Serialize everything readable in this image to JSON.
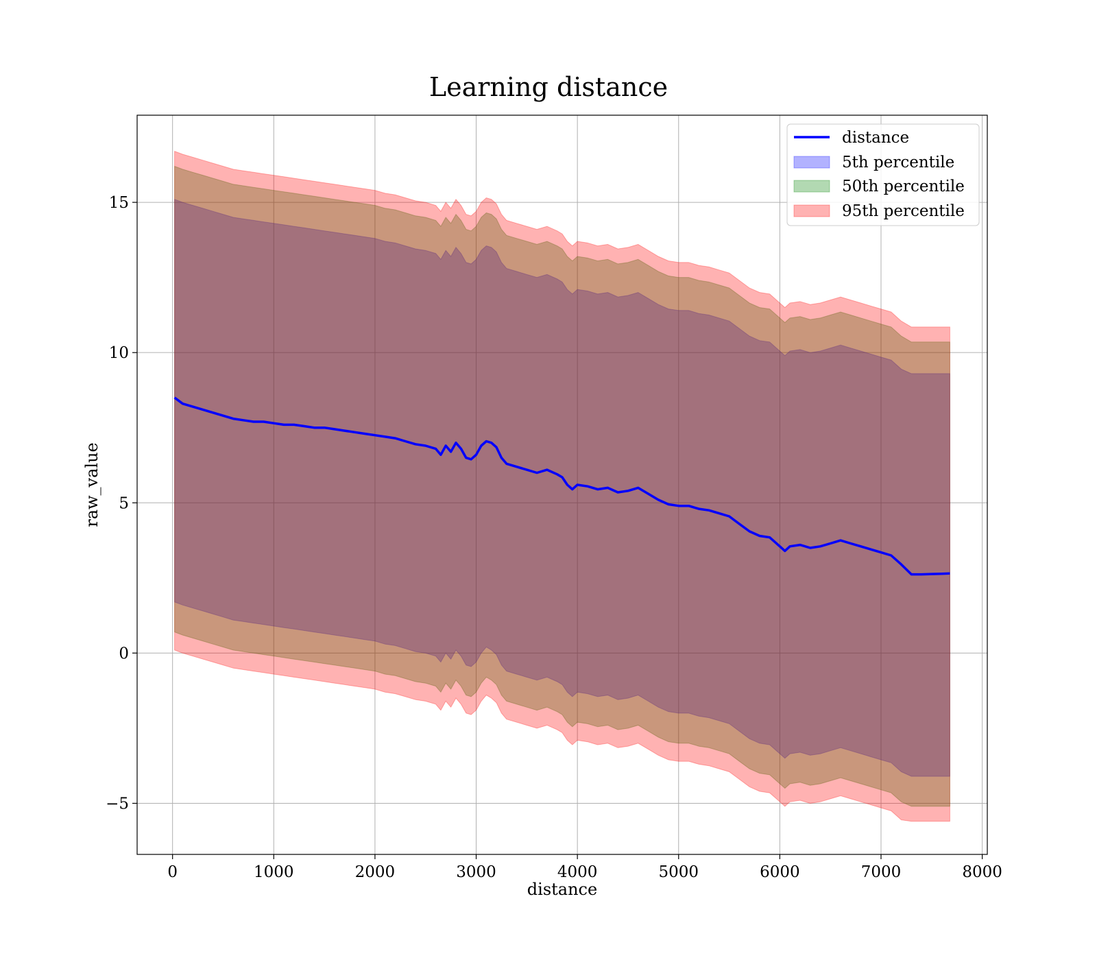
{
  "chart_data": {
    "type": "area",
    "title": "Learning distance",
    "xlabel": "distance",
    "ylabel": "raw_value",
    "xlim": [
      -350,
      8050
    ],
    "ylim": [
      -6.7,
      17.9
    ],
    "xticks": [
      0,
      1000,
      2000,
      3000,
      4000,
      5000,
      6000,
      7000,
      8000
    ],
    "yticks": [
      -5,
      0,
      5,
      10,
      15
    ],
    "xtick_labels": [
      "0",
      "1000",
      "2000",
      "3000",
      "4000",
      "5000",
      "6000",
      "7000",
      "8000"
    ],
    "ytick_labels": [
      "−5",
      "0",
      "5",
      "10",
      "15"
    ],
    "grid": true,
    "legend_position": "top-right",
    "colors": {
      "line": "#0000ff",
      "p5": "#0000ff",
      "p50": "#008000",
      "p95": "#ff0000"
    },
    "x": [
      20,
      100,
      200,
      300,
      400,
      500,
      600,
      700,
      800,
      900,
      1000,
      1100,
      1200,
      1300,
      1400,
      1500,
      1600,
      1700,
      1800,
      1900,
      2000,
      2100,
      2200,
      2300,
      2400,
      2500,
      2600,
      2650,
      2700,
      2750,
      2800,
      2850,
      2900,
      2950,
      3000,
      3050,
      3100,
      3150,
      3200,
      3250,
      3300,
      3400,
      3500,
      3600,
      3700,
      3800,
      3850,
      3900,
      3950,
      4000,
      4100,
      4200,
      4300,
      4400,
      4500,
      4600,
      4700,
      4800,
      4900,
      5000,
      5100,
      5200,
      5300,
      5400,
      5500,
      5600,
      5700,
      5800,
      5900,
      6000,
      6050,
      6100,
      6200,
      6300,
      6400,
      6500,
      6600,
      6700,
      6800,
      6900,
      7000,
      7100,
      7200,
      7300,
      7400,
      7500,
      7600,
      7680
    ],
    "series": [
      {
        "name": "distance",
        "values": [
          8.5,
          8.3,
          8.2,
          8.1,
          8.0,
          7.9,
          7.8,
          7.75,
          7.7,
          7.7,
          7.65,
          7.6,
          7.6,
          7.55,
          7.5,
          7.5,
          7.45,
          7.4,
          7.35,
          7.3,
          7.25,
          7.2,
          7.15,
          7.05,
          6.95,
          6.9,
          6.8,
          6.6,
          6.9,
          6.7,
          7.0,
          6.8,
          6.5,
          6.45,
          6.6,
          6.9,
          7.05,
          7.0,
          6.85,
          6.5,
          6.3,
          6.2,
          6.1,
          6.0,
          6.1,
          5.95,
          5.85,
          5.6,
          5.45,
          5.6,
          5.55,
          5.45,
          5.5,
          5.35,
          5.4,
          5.5,
          5.3,
          5.1,
          4.95,
          4.9,
          4.9,
          4.8,
          4.75,
          4.65,
          4.55,
          4.3,
          4.05,
          3.9,
          3.85,
          3.55,
          3.4,
          3.55,
          3.6,
          3.5,
          3.55,
          3.65,
          3.75,
          3.65,
          3.55,
          3.45,
          3.35,
          3.25,
          2.95,
          2.62,
          2.62,
          2.63,
          2.64,
          2.65
        ]
      },
      {
        "name": "5th percentile",
        "lower": [
          1.7,
          1.6,
          1.5,
          1.4,
          1.3,
          1.2,
          1.1,
          1.05,
          1.0,
          0.95,
          0.9,
          0.85,
          0.8,
          0.75,
          0.7,
          0.65,
          0.6,
          0.55,
          0.5,
          0.45,
          0.4,
          0.3,
          0.25,
          0.15,
          0.05,
          0.0,
          -0.1,
          -0.3,
          0.0,
          -0.2,
          0.1,
          -0.1,
          -0.4,
          -0.45,
          -0.3,
          0.0,
          0.2,
          0.1,
          -0.05,
          -0.4,
          -0.6,
          -0.7,
          -0.8,
          -0.9,
          -0.8,
          -0.95,
          -1.05,
          -1.3,
          -1.45,
          -1.3,
          -1.35,
          -1.45,
          -1.4,
          -1.55,
          -1.5,
          -1.4,
          -1.6,
          -1.8,
          -1.95,
          -2.0,
          -2.0,
          -2.1,
          -2.15,
          -2.25,
          -2.35,
          -2.6,
          -2.85,
          -3.0,
          -3.05,
          -3.35,
          -3.5,
          -3.35,
          -3.3,
          -3.4,
          -3.35,
          -3.25,
          -3.15,
          -3.25,
          -3.35,
          -3.45,
          -3.55,
          -3.65,
          -3.95,
          -4.1,
          -4.1,
          -4.1,
          -4.1,
          -4.1
        ],
        "upper": [
          15.1,
          15.0,
          14.9,
          14.8,
          14.7,
          14.6,
          14.5,
          14.45,
          14.4,
          14.35,
          14.3,
          14.25,
          14.2,
          14.15,
          14.1,
          14.05,
          14.0,
          13.95,
          13.9,
          13.85,
          13.8,
          13.7,
          13.65,
          13.55,
          13.45,
          13.4,
          13.3,
          13.1,
          13.4,
          13.2,
          13.5,
          13.3,
          13.0,
          12.95,
          13.1,
          13.4,
          13.55,
          13.5,
          13.35,
          13.0,
          12.8,
          12.7,
          12.6,
          12.5,
          12.6,
          12.45,
          12.35,
          12.1,
          11.95,
          12.1,
          12.05,
          11.95,
          12.0,
          11.85,
          11.9,
          12.0,
          11.8,
          11.6,
          11.45,
          11.4,
          11.4,
          11.3,
          11.25,
          11.15,
          11.05,
          10.8,
          10.55,
          10.4,
          10.35,
          10.05,
          9.9,
          10.05,
          10.1,
          10.0,
          10.05,
          10.15,
          10.25,
          10.15,
          10.05,
          9.95,
          9.85,
          9.75,
          9.45,
          9.3,
          9.3,
          9.3,
          9.3,
          9.3
        ]
      },
      {
        "name": "50th percentile",
        "lower": [
          0.7,
          0.6,
          0.5,
          0.4,
          0.3,
          0.2,
          0.1,
          0.05,
          0.0,
          -0.05,
          -0.1,
          -0.15,
          -0.2,
          -0.25,
          -0.3,
          -0.35,
          -0.4,
          -0.45,
          -0.5,
          -0.55,
          -0.6,
          -0.7,
          -0.75,
          -0.85,
          -0.95,
          -1.0,
          -1.1,
          -1.3,
          -1.0,
          -1.2,
          -0.9,
          -1.1,
          -1.4,
          -1.45,
          -1.3,
          -1.0,
          -0.8,
          -0.9,
          -1.05,
          -1.4,
          -1.6,
          -1.7,
          -1.8,
          -1.9,
          -1.8,
          -1.95,
          -2.05,
          -2.3,
          -2.45,
          -2.3,
          -2.35,
          -2.45,
          -2.4,
          -2.55,
          -2.5,
          -2.4,
          -2.6,
          -2.8,
          -2.95,
          -3.0,
          -3.0,
          -3.1,
          -3.15,
          -3.25,
          -3.35,
          -3.6,
          -3.85,
          -4.0,
          -4.05,
          -4.35,
          -4.5,
          -4.35,
          -4.3,
          -4.4,
          -4.35,
          -4.25,
          -4.15,
          -4.25,
          -4.35,
          -4.45,
          -4.55,
          -4.65,
          -4.95,
          -5.1,
          -5.1,
          -5.1,
          -5.1,
          -5.1
        ],
        "upper": [
          16.2,
          16.1,
          16.0,
          15.9,
          15.8,
          15.7,
          15.6,
          15.55,
          15.5,
          15.45,
          15.4,
          15.35,
          15.3,
          15.25,
          15.2,
          15.15,
          15.1,
          15.05,
          15.0,
          14.95,
          14.9,
          14.8,
          14.75,
          14.65,
          14.55,
          14.5,
          14.4,
          14.2,
          14.5,
          14.3,
          14.6,
          14.4,
          14.1,
          14.05,
          14.2,
          14.5,
          14.65,
          14.6,
          14.45,
          14.1,
          13.9,
          13.8,
          13.7,
          13.6,
          13.7,
          13.55,
          13.45,
          13.2,
          13.05,
          13.2,
          13.15,
          13.05,
          13.1,
          12.95,
          13.0,
          13.1,
          12.9,
          12.7,
          12.55,
          12.5,
          12.5,
          12.4,
          12.35,
          12.25,
          12.15,
          11.9,
          11.65,
          11.5,
          11.45,
          11.15,
          11.0,
          11.15,
          11.2,
          11.1,
          11.15,
          11.25,
          11.35,
          11.25,
          11.15,
          11.05,
          10.95,
          10.85,
          10.55,
          10.35,
          10.35,
          10.35,
          10.35,
          10.35
        ]
      },
      {
        "name": "95th percentile",
        "lower": [
          0.1,
          0.0,
          -0.1,
          -0.2,
          -0.3,
          -0.4,
          -0.5,
          -0.55,
          -0.6,
          -0.65,
          -0.7,
          -0.75,
          -0.8,
          -0.85,
          -0.9,
          -0.95,
          -1.0,
          -1.05,
          -1.1,
          -1.15,
          -1.2,
          -1.3,
          -1.35,
          -1.45,
          -1.55,
          -1.6,
          -1.7,
          -1.9,
          -1.6,
          -1.8,
          -1.5,
          -1.7,
          -2.0,
          -2.05,
          -1.9,
          -1.6,
          -1.4,
          -1.5,
          -1.65,
          -2.0,
          -2.2,
          -2.3,
          -2.4,
          -2.5,
          -2.4,
          -2.55,
          -2.65,
          -2.9,
          -3.05,
          -2.9,
          -2.95,
          -3.05,
          -3.0,
          -3.15,
          -3.1,
          -3.0,
          -3.2,
          -3.4,
          -3.55,
          -3.6,
          -3.6,
          -3.7,
          -3.75,
          -3.85,
          -3.95,
          -4.2,
          -4.45,
          -4.6,
          -4.65,
          -4.95,
          -5.1,
          -4.95,
          -4.9,
          -5.0,
          -4.95,
          -4.85,
          -4.75,
          -4.85,
          -4.95,
          -5.05,
          -5.15,
          -5.25,
          -5.55,
          -5.6,
          -5.6,
          -5.6,
          -5.6,
          -5.6
        ],
        "upper": [
          16.7,
          16.6,
          16.5,
          16.4,
          16.3,
          16.2,
          16.1,
          16.05,
          16.0,
          15.95,
          15.9,
          15.85,
          15.8,
          15.75,
          15.7,
          15.65,
          15.6,
          15.55,
          15.5,
          15.45,
          15.4,
          15.3,
          15.25,
          15.15,
          15.05,
          15.0,
          14.9,
          14.7,
          15.0,
          14.8,
          15.1,
          14.9,
          14.6,
          14.55,
          14.7,
          15.0,
          15.15,
          15.1,
          14.95,
          14.6,
          14.4,
          14.3,
          14.2,
          14.1,
          14.2,
          14.05,
          13.95,
          13.7,
          13.55,
          13.7,
          13.65,
          13.55,
          13.6,
          13.45,
          13.5,
          13.6,
          13.4,
          13.2,
          13.05,
          13.0,
          13.0,
          12.9,
          12.85,
          12.75,
          12.65,
          12.4,
          12.15,
          12.0,
          11.95,
          11.65,
          11.5,
          11.65,
          11.7,
          11.6,
          11.65,
          11.75,
          11.85,
          11.75,
          11.65,
          11.55,
          11.45,
          11.35,
          11.05,
          10.85,
          10.85,
          10.85,
          10.85,
          10.85
        ]
      }
    ]
  }
}
